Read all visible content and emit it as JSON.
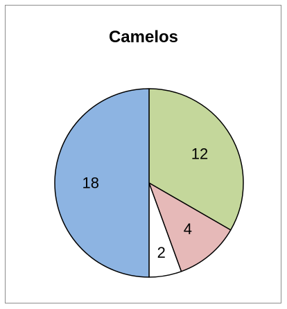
{
  "chart_data": {
    "type": "pie",
    "title": "Camelos",
    "slices": [
      {
        "value": 12,
        "label": "12",
        "color": "#c4d79b"
      },
      {
        "value": 4,
        "label": "4",
        "color": "#e6b9b8"
      },
      {
        "value": 2,
        "label": "2",
        "color": "#ffffff"
      },
      {
        "value": 18,
        "label": "18",
        "color": "#8db4e2"
      }
    ],
    "start_angle_deg": 0,
    "direction": "clockwise",
    "legend": "none",
    "slice_border_color": "#000000"
  }
}
